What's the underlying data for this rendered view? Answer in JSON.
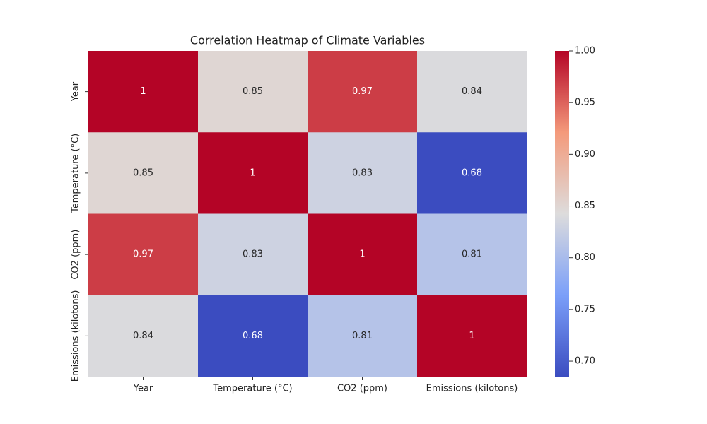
{
  "chart_data": {
    "type": "heatmap",
    "title": "Correlation Heatmap of Climate Variables",
    "x_categories": [
      "Year",
      "Temperature (°C)",
      "CO2 (ppm)",
      "Emissions (kilotons)"
    ],
    "y_categories": [
      "Year",
      "Temperature (°C)",
      "CO2 (ppm)",
      "Emissions (kilotons)"
    ],
    "values": [
      [
        1,
        0.85,
        0.97,
        0.84
      ],
      [
        0.85,
        1,
        0.83,
        0.68
      ],
      [
        0.97,
        0.83,
        1,
        0.81
      ],
      [
        0.84,
        0.68,
        0.81,
        1
      ]
    ],
    "colormap": [
      "#3b4cc0",
      "#7b9ff9",
      "#dddcdc",
      "#f49a7b",
      "#b40426"
    ],
    "clim": [
      0.685,
      1
    ],
    "cticks": [
      {
        "value": 0.7,
        "label": "0.70"
      },
      {
        "value": 0.75,
        "label": "0.75"
      },
      {
        "value": 0.8,
        "label": "0.80"
      },
      {
        "value": 0.85,
        "label": "0.85"
      },
      {
        "value": 0.9,
        "label": "0.90"
      },
      {
        "value": 0.95,
        "label": "0.95"
      },
      {
        "value": 1,
        "label": "1.00"
      }
    ]
  }
}
